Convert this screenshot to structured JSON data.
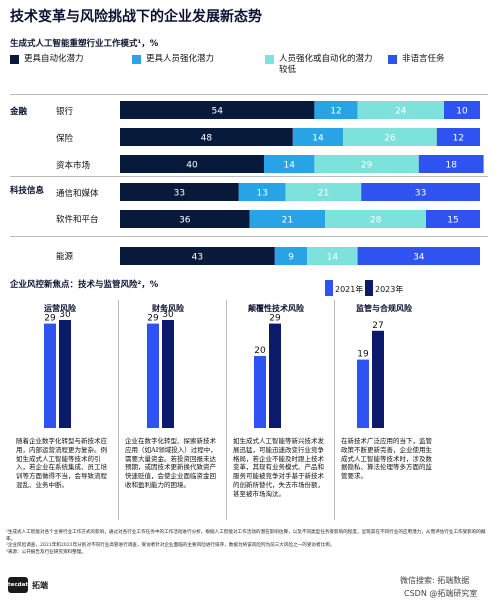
{
  "header": {
    "title": "技术变革与风险挑战下的企业发展新态势",
    "subtitle": "生成式人工智能重塑行业工作模式¹，%"
  },
  "legend": [
    {
      "label": "更具自动化潜力",
      "color": "#081a3b"
    },
    {
      "label": "更具人员强化潜力",
      "color": "#27a3e6"
    },
    {
      "label": "人员强化或自动化的潜力较低",
      "color": "#7de2dc"
    },
    {
      "label": "非语言任务",
      "color": "#2f53f0"
    }
  ],
  "chart_data": [
    {
      "type": "bar",
      "orientation": "horizontal-stacked",
      "title": "生成式人工智能重塑行业工作模式¹，%",
      "groups": [
        {
          "name": "金融",
          "categories": [
            "银行",
            "保险",
            "资本市场"
          ]
        },
        {
          "name": "科技信息",
          "categories": [
            "通信和媒体",
            "软件和平台"
          ]
        },
        {
          "name": "",
          "categories": [
            "能源"
          ]
        }
      ],
      "categories": [
        "银行",
        "保险",
        "资本市场",
        "通信和媒体",
        "软件和平台",
        "能源"
      ],
      "series": [
        {
          "name": "更具自动化潜力",
          "values": [
            54,
            48,
            40,
            33,
            36,
            43
          ]
        },
        {
          "name": "更具人员强化潜力",
          "values": [
            12,
            14,
            14,
            13,
            21,
            9
          ]
        },
        {
          "name": "人员强化或自动化的潜力较低",
          "values": [
            24,
            26,
            29,
            21,
            28,
            14
          ]
        },
        {
          "name": "非语言任务",
          "values": [
            10,
            12,
            18,
            33,
            15,
            34
          ]
        }
      ],
      "xlim": [
        0,
        100
      ],
      "legend_position": "top"
    },
    {
      "type": "bar",
      "title": "企业风控新焦点：技术与监管风险²，%",
      "categories": [
        "运营风险",
        "财务风险",
        "颠覆性技术风险",
        "监管与合规风险"
      ],
      "series": [
        {
          "name": "2021年",
          "values": [
            29,
            29,
            20,
            19
          ]
        },
        {
          "name": "2023年",
          "values": [
            30,
            30,
            29,
            27
          ]
        }
      ],
      "legend_position": "top-right"
    }
  ],
  "section2": {
    "title": "企业风控新焦点：技术与监管风险²，%",
    "legend": [
      {
        "label": "2021年",
        "color": "#2f53f0"
      },
      {
        "label": "2023年",
        "color": "#0b1a6b"
      }
    ],
    "panels": [
      {
        "title": "运营风险",
        "text": "随着企业数字化转型与新技术应用，内部运营流程更为复杂。例如生成式人工智能等技术的引入，若企业在系统集成、员工培训等方面做得不当，会导致流程混乱、业务中断。"
      },
      {
        "title": "财务风险",
        "text": "企业在数字化转型、探索新技术应用（如AI领域投入）过程中，需要大量资金。若投资回报未达预期，或因技术更新换代致资产快速贬值，会使企业面临资金回收和盈利能力的困境。"
      },
      {
        "title": "颠覆性技术风险",
        "text": "如生成式人工智能等新兴技术发展迅猛，可能迅速改变行业竞争格局，若企业不能及时跟上技术变革，其现有业务模式、产品和服务可能被竞争对手基于新技术的创新所替代，失去市场份额，甚至被市场淘汰。"
      },
      {
        "title": "监管与合规风险",
        "text": "在新技术广泛应用的当下，监管政策不断更新完善，企业使用生成式人工智能等技术时，涉及数据隐私、算法伦理等多方面的监管要求。"
      }
    ]
  },
  "footnotes": [
    "¹生成式人工智能对各个主要行业工作方式的影响，通过对各行业工作任务中的工作活动进行分析。根据人工智能对工作活动的潜在影响估算，以及不同类型任务受影响的程度，呈现其在不同行业的应用潜力，从而评估行业工作受影响的概率。",
    "²企业风险调查，2021年和2023年分别对不同行业高管进行调查，受访者针对企业面临的主要风险进行排序，数据为将该风险列为前三大风险之一的受访者比例。",
    "³来源：公开报告及行业研究资料整理。"
  ],
  "branding": {
    "logo_box": "tecdat",
    "logo_text": "拓端",
    "wm1": "微信搜索: 拓端数据",
    "wm2": "CSDN @拓端研究室"
  }
}
